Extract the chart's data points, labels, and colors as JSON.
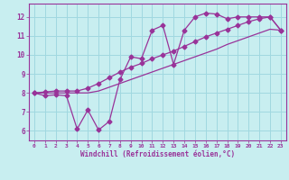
{
  "xlabel": "Windchill (Refroidissement éolien,°C)",
  "bg_color": "#c8eef0",
  "line_color": "#993399",
  "grid_color": "#a0d8e0",
  "xlim": [
    -0.5,
    23.5
  ],
  "ylim": [
    5.5,
    12.7
  ],
  "xticks": [
    0,
    1,
    2,
    3,
    4,
    5,
    6,
    7,
    8,
    9,
    10,
    11,
    12,
    13,
    14,
    15,
    16,
    17,
    18,
    19,
    20,
    21,
    22,
    23
  ],
  "yticks": [
    6,
    7,
    8,
    9,
    10,
    11,
    12
  ],
  "zigzag_x": [
    0,
    1,
    2,
    3,
    4,
    5,
    6,
    7,
    8,
    9,
    10,
    11,
    12,
    13,
    14,
    15,
    16,
    17,
    18,
    19,
    20,
    21,
    22,
    23
  ],
  "zigzag_y": [
    8.0,
    7.85,
    7.9,
    7.85,
    6.1,
    7.1,
    6.05,
    6.5,
    8.7,
    9.9,
    9.8,
    11.3,
    11.55,
    9.5,
    11.3,
    12.0,
    12.2,
    12.15,
    11.9,
    12.0,
    12.0,
    12.0,
    12.0,
    11.3
  ],
  "upper_x": [
    0,
    1,
    2,
    3,
    4,
    5,
    6,
    7,
    8,
    9,
    10,
    11,
    12,
    13,
    14,
    15,
    16,
    17,
    18,
    19,
    20,
    21,
    22,
    23
  ],
  "upper_y": [
    8.0,
    8.05,
    8.1,
    8.1,
    8.1,
    8.25,
    8.5,
    8.8,
    9.1,
    9.35,
    9.55,
    9.8,
    10.0,
    10.2,
    10.45,
    10.7,
    10.95,
    11.15,
    11.35,
    11.55,
    11.75,
    11.9,
    12.0,
    11.3
  ],
  "lower_x": [
    0,
    1,
    2,
    3,
    4,
    5,
    6,
    7,
    8,
    9,
    10,
    11,
    12,
    13,
    14,
    15,
    16,
    17,
    18,
    19,
    20,
    21,
    22,
    23
  ],
  "lower_y": [
    8.0,
    8.0,
    8.0,
    8.0,
    8.0,
    8.0,
    8.1,
    8.3,
    8.5,
    8.7,
    8.9,
    9.1,
    9.3,
    9.5,
    9.7,
    9.9,
    10.1,
    10.3,
    10.55,
    10.75,
    10.95,
    11.15,
    11.35,
    11.3
  ]
}
